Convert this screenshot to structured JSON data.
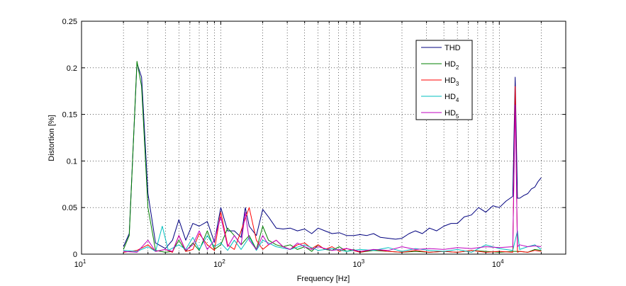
{
  "chart_data": {
    "type": "line",
    "title": "",
    "xlabel": "Frequency [Hz]",
    "ylabel": "Distortion [%]",
    "xscale": "log",
    "xlim": [
      10,
      30000
    ],
    "ylim": [
      0,
      0.25
    ],
    "grid": true,
    "legend_position": "top-right",
    "x_ticks": [
      10,
      100,
      1000,
      10000
    ],
    "x_tick_labels": [
      {
        "base": "10",
        "exp": "1"
      },
      {
        "base": "10",
        "exp": "2"
      },
      {
        "base": "10",
        "exp": "3"
      },
      {
        "base": "10",
        "exp": "4"
      }
    ],
    "y_ticks": [
      0,
      0.05,
      0.1,
      0.15,
      0.2,
      0.25
    ],
    "y_tick_labels": [
      "0",
      "0.05",
      "0.1",
      "0.15",
      "0.2",
      "0.25"
    ],
    "series": [
      {
        "name": "THD",
        "legend_main": "THD",
        "legend_sub": "",
        "color": "#00007f",
        "x": [
          20,
          22,
          25,
          27,
          30,
          34,
          40,
          45,
          50,
          56,
          63,
          70,
          80,
          90,
          100,
          112,
          125,
          140,
          150,
          160,
          180,
          200,
          220,
          250,
          280,
          315,
          355,
          400,
          450,
          500,
          560,
          630,
          710,
          800,
          900,
          1000,
          1120,
          1250,
          1400,
          1600,
          1800,
          2000,
          2250,
          2500,
          2800,
          3150,
          3550,
          4000,
          4500,
          5000,
          5600,
          6300,
          7100,
          8000,
          9000,
          10000,
          11200,
          12500,
          13000,
          13500,
          14000,
          15000,
          16000,
          17000,
          18000,
          19000,
          20000
        ],
        "y": [
          0.008,
          0.022,
          0.205,
          0.19,
          0.065,
          0.012,
          0.006,
          0.015,
          0.037,
          0.015,
          0.033,
          0.03,
          0.035,
          0.013,
          0.05,
          0.025,
          0.025,
          0.018,
          0.05,
          0.03,
          0.02,
          0.048,
          0.04,
          0.028,
          0.027,
          0.028,
          0.025,
          0.027,
          0.022,
          0.028,
          0.025,
          0.022,
          0.023,
          0.02,
          0.02,
          0.021,
          0.02,
          0.022,
          0.018,
          0.017,
          0.016,
          0.017,
          0.022,
          0.025,
          0.022,
          0.028,
          0.025,
          0.03,
          0.033,
          0.033,
          0.04,
          0.042,
          0.05,
          0.045,
          0.052,
          0.05,
          0.057,
          0.062,
          0.19,
          0.06,
          0.06,
          0.063,
          0.065,
          0.07,
          0.072,
          0.078,
          0.082
        ]
      },
      {
        "name": "HD2",
        "legend_main": "HD",
        "legend_sub": "2",
        "color": "#007f00",
        "x": [
          20,
          22,
          25,
          27,
          30,
          34,
          40,
          45,
          50,
          56,
          63,
          70,
          80,
          90,
          100,
          112,
          125,
          140,
          160,
          180,
          200,
          220,
          250,
          280,
          315,
          355,
          400,
          450,
          500,
          560,
          630,
          710,
          800,
          900,
          1000,
          1250,
          1600,
          2000,
          2500,
          3150,
          4000,
          5000,
          6300,
          8000,
          10000,
          12500,
          14000,
          16000,
          18000,
          20000
        ],
        "y": [
          0.005,
          0.02,
          0.207,
          0.18,
          0.05,
          0.004,
          0.002,
          0.003,
          0.015,
          0.003,
          0.012,
          0.004,
          0.025,
          0.005,
          0.01,
          0.028,
          0.02,
          0.01,
          0.02,
          0.005,
          0.03,
          0.015,
          0.01,
          0.008,
          0.01,
          0.005,
          0.008,
          0.003,
          0.01,
          0.005,
          0.004,
          0.008,
          0.003,
          0.005,
          0.002,
          0.004,
          0.003,
          0.002,
          0.003,
          0.002,
          0.003,
          0.002,
          0.004,
          0.003,
          0.002,
          0.003,
          0.003,
          0.002,
          0.005,
          0.004
        ]
      },
      {
        "name": "HD3",
        "legend_main": "HD",
        "legend_sub": "3",
        "color": "#ff0000",
        "x": [
          20,
          25,
          30,
          34,
          40,
          45,
          50,
          56,
          63,
          70,
          80,
          90,
          100,
          112,
          125,
          140,
          160,
          180,
          200,
          220,
          250,
          280,
          315,
          355,
          400,
          450,
          500,
          560,
          630,
          710,
          800,
          1000,
          1250,
          1600,
          2000,
          2500,
          3150,
          4000,
          5000,
          6300,
          8000,
          10000,
          12500,
          13000,
          13500,
          14000,
          16000,
          18000,
          20000
        ],
        "y": [
          0.002,
          0.004,
          0.01,
          0.003,
          0.005,
          0.002,
          0.02,
          0.003,
          0.005,
          0.022,
          0.01,
          0.004,
          0.045,
          0.01,
          0.005,
          0.025,
          0.05,
          0.015,
          0.005,
          0.01,
          0.015,
          0.008,
          0.005,
          0.01,
          0.012,
          0.006,
          0.01,
          0.005,
          0.008,
          0.003,
          0.006,
          0.002,
          0.005,
          0.003,
          0.002,
          0.004,
          0.002,
          0.003,
          0.002,
          0.004,
          0.002,
          0.003,
          0.002,
          0.18,
          0.002,
          0.003,
          0.002,
          0.004,
          0.003
        ]
      },
      {
        "name": "HD4",
        "legend_main": "HD",
        "legend_sub": "4",
        "color": "#00bfbf",
        "x": [
          20,
          25,
          30,
          34,
          38,
          42,
          50,
          56,
          63,
          70,
          80,
          90,
          100,
          112,
          125,
          140,
          160,
          180,
          200,
          250,
          315,
          400,
          500,
          630,
          800,
          1000,
          1250,
          1600,
          2000,
          2500,
          3150,
          4000,
          5000,
          6300,
          8000,
          10000,
          12500,
          13500,
          14000,
          16000,
          18000,
          20000
        ],
        "y": [
          0.004,
          0.003,
          0.008,
          0.003,
          0.03,
          0.004,
          0.01,
          0.005,
          0.018,
          0.005,
          0.02,
          0.008,
          0.012,
          0.004,
          0.015,
          0.005,
          0.018,
          0.004,
          0.015,
          0.008,
          0.005,
          0.01,
          0.004,
          0.006,
          0.003,
          0.005,
          0.004,
          0.007,
          0.003,
          0.006,
          0.004,
          0.003,
          0.005,
          0.002,
          0.01,
          0.006,
          0.004,
          0.025,
          0.005,
          0.008,
          0.01,
          0.005
        ]
      },
      {
        "name": "HD5",
        "legend_main": "HD",
        "legend_sub": "5",
        "color": "#bf00bf",
        "x": [
          20,
          25,
          30,
          34,
          40,
          45,
          50,
          56,
          63,
          70,
          80,
          90,
          100,
          112,
          125,
          140,
          150,
          160,
          180,
          200,
          220,
          250,
          280,
          315,
          355,
          400,
          450,
          500,
          630,
          800,
          1000,
          1250,
          1600,
          2000,
          2500,
          3150,
          4000,
          5000,
          6300,
          8000,
          10000,
          12500,
          13000,
          13500,
          14000,
          16000,
          18000,
          20000
        ],
        "y": [
          0.003,
          0.002,
          0.015,
          0.003,
          0.005,
          0.003,
          0.02,
          0.004,
          0.01,
          0.025,
          0.005,
          0.015,
          0.04,
          0.008,
          0.02,
          0.01,
          0.045,
          0.015,
          0.005,
          0.02,
          0.01,
          0.015,
          0.008,
          0.005,
          0.012,
          0.008,
          0.005,
          0.008,
          0.004,
          0.006,
          0.003,
          0.005,
          0.004,
          0.008,
          0.005,
          0.006,
          0.005,
          0.007,
          0.006,
          0.008,
          0.007,
          0.008,
          0.16,
          0.008,
          0.01,
          0.008,
          0.009,
          0.008
        ]
      }
    ]
  }
}
